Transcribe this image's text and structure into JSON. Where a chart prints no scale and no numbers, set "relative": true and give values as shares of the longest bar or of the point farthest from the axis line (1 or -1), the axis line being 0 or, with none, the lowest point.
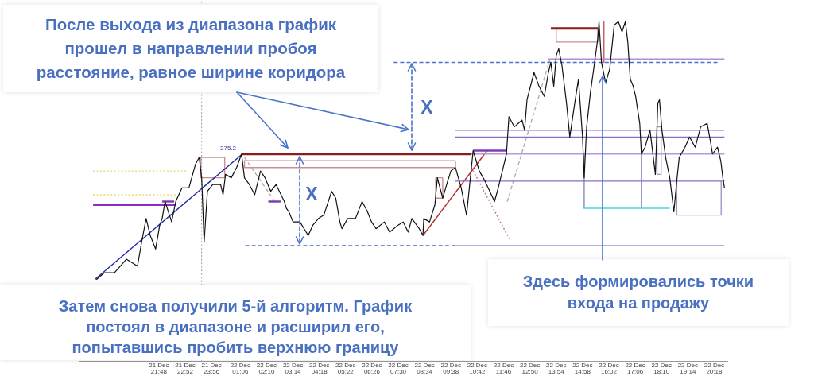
{
  "chart_data": {
    "type": "line",
    "relative": true,
    "annotations": [
      "После выхода из диапазона график\nпрошел в направлении пробоя\nрасстояние, равное ширине коридора",
      "X",
      "X",
      "275.2",
      "Затем снова получили 5-й алгоритм. График\nпостоял в диапазоне и расширил его,\nпопытавшись пробить верхнюю границу",
      "Здесь формировались точки\nвхода на продажу"
    ],
    "xlim": [
      "--12-21T18:35",
      "--12-22T20:50"
    ],
    "xticks": [
      {
        "value": "--12-21T21:48",
        "label": "21 Dec 21:48"
      },
      {
        "value": "--12-21T22:52",
        "label": "21 Dec 22:52"
      },
      {
        "value": "--12-21T23:56",
        "label": "21 Dec 23:56"
      },
      {
        "value": "--12-22T01:06",
        "label": "22 Dec 01:06"
      },
      {
        "value": "--12-22T02:10",
        "label": "22 Dec 02:10"
      },
      {
        "value": "--12-22T03:14",
        "label": "22 Dec 03:14"
      },
      {
        "value": "--12-22T04:18",
        "label": "22 Dec 04:18"
      },
      {
        "value": "--12-22T05:22",
        "label": "22 Dec 05:22"
      },
      {
        "value": "--12-22T06:26",
        "label": "22 Dec 06:26"
      },
      {
        "value": "--12-22T07:30",
        "label": "22 Dec 07:30"
      },
      {
        "value": "--12-22T08:34",
        "label": "22 Dec 08:34"
      },
      {
        "value": "--12-22T09:38",
        "label": "22 Dec 09:38"
      },
      {
        "value": "--12-22T10:42",
        "label": "22 Dec 10:42"
      },
      {
        "value": "--12-22T11:46",
        "label": "22 Dec 11:46"
      },
      {
        "value": "--12-22T12:50",
        "label": "22 Dec 12:50"
      },
      {
        "value": "--12-22T13:54",
        "label": "22 Dec 13:54"
      },
      {
        "value": "--12-22T14:58",
        "label": "22 Dec 14:58"
      },
      {
        "value": "--12-22T16:02",
        "label": "22 Dec 16:02"
      },
      {
        "value": "--12-22T17:06",
        "label": "22 Dec 17:06"
      },
      {
        "value": "--12-22T18:10",
        "label": "22 Dec 18:10"
      },
      {
        "value": "--12-22T19:14",
        "label": "22 Dec 19:14"
      },
      {
        "value": "--12-22T20:18",
        "label": "22 Dec 20:18"
      }
    ],
    "series": [
      {
        "color": "#111111",
        "x": [
          "--12-21T19:16",
          "--12-21T19:35",
          "--12-21T20:00",
          "--12-21T20:29",
          "--12-21T20:56",
          "--12-21T21:06",
          "--12-21T21:17",
          "--12-21T21:27",
          "--12-21T21:40",
          "--12-21T21:50",
          "--12-21T21:56",
          "--12-21T22:03",
          "--12-21T22:19",
          "--12-21T22:29",
          "--12-21T22:44",
          "--12-21T23:01",
          "--12-21T23:17",
          "--12-21T23:26",
          "--12-21T23:32",
          "--12-21T23:38",
          "--12-21T23:46",
          "--12-21T23:59",
          "--12-22T00:18",
          "--12-22T00:24",
          "--12-22T00:30",
          "--12-22T00:44",
          "--12-22T00:57",
          "--12-22T01:09",
          "--12-22T01:16",
          "--12-22T01:28",
          "--12-22T01:41",
          "--12-22T01:55",
          "--12-22T02:06",
          "--12-22T02:20",
          "--12-22T02:33",
          "--12-22T02:53",
          "--12-22T02:58",
          "--12-22T03:04",
          "--12-22T03:14",
          "--12-22T03:31",
          "--12-22T03:51",
          "--12-22T04:02",
          "--12-22T04:16",
          "--12-22T04:29",
          "--12-22T04:48",
          "--12-22T04:58",
          "--12-22T05:08",
          "--12-22T05:13",
          "--12-22T05:27",
          "--12-22T05:46",
          "--12-22T06:02",
          "--12-22T06:15",
          "--12-22T06:25",
          "--12-22T06:36",
          "--12-22T06:56",
          "--12-22T07:09",
          "--12-22T07:29",
          "--12-22T07:42",
          "--12-22T07:54",
          "--12-22T08:03",
          "--12-22T08:21",
          "--12-22T08:30",
          "--12-22T08:32",
          "--12-22T08:46",
          "--12-22T08:59",
          "--12-22T09:05",
          "--12-22T09:18",
          "--12-22T09:30",
          "--12-22T09:38",
          "--12-22T09:49",
          "--12-22T10:03",
          "--12-22T10:16",
          "--12-22T10:32",
          "--12-22T10:47",
          "--12-22T11:01",
          "--12-22T11:24",
          "--12-22T11:33",
          "--12-22T11:43",
          "--12-22T11:53",
          "--12-22T11:59",
          "--12-22T12:12",
          "--12-22T12:31",
          "--12-22T12:37",
          "--12-22T12:43",
          "--12-22T13:00",
          "--12-22T13:12",
          "--12-22T13:25",
          "--12-22T13:35",
          "--12-22T13:41",
          "--12-22T13:48",
          "--12-22T13:54",
          "--12-22T14:00",
          "--12-22T14:08",
          "--12-22T14:19",
          "--12-22T14:27",
          "--12-22T14:39",
          "--12-22T14:48",
          "--12-22T14:58",
          "--12-22T15:02",
          "--12-22T15:08",
          "--12-22T15:17",
          "--12-22T15:25",
          "--12-22T15:35",
          "--12-22T15:38",
          "--12-22T15:44",
          "--12-22T15:54",
          "--12-22T16:04",
          "--12-22T16:09",
          "--12-22T16:15",
          "--12-22T16:25",
          "--12-22T16:34",
          "--12-22T16:42",
          "--12-22T16:48",
          "--12-22T16:54",
          "--12-22T17:01",
          "--12-22T17:07",
          "--12-22T17:17",
          "--12-22T17:21",
          "--12-22T17:30",
          "--12-22T17:42",
          "--12-22T17:50",
          "--12-22T17:55",
          "--12-22T18:01",
          "--12-22T18:05",
          "--12-22T18:11",
          "--12-22T18:20",
          "--12-22T18:30",
          "--12-22T18:40",
          "--12-22T18:47",
          "--12-22T18:53",
          "--12-22T19:07",
          "--12-22T19:18",
          "--12-22T19:32",
          "--12-22T19:45",
          "--12-22T20:01",
          "--12-22T20:07",
          "--12-22T20:14",
          "--12-22T20:26",
          "--12-22T20:34",
          "--12-22T20:39",
          "--12-22T20:43"
        ],
        "values": [
          0.24,
          0.26,
          0.26,
          0.3,
          0.28,
          0.35,
          0.42,
          0.37,
          0.33,
          0.4,
          0.42,
          0.47,
          0.41,
          0.47,
          0.51,
          0.51,
          0.58,
          0.6,
          0.54,
          0.35,
          0.5,
          0.52,
          0.52,
          0.49,
          0.55,
          0.54,
          0.57,
          0.61,
          0.54,
          0.52,
          0.49,
          0.56,
          0.54,
          0.5,
          0.52,
          0.47,
          0.45,
          0.44,
          0.41,
          0.41,
          0.37,
          0.4,
          0.42,
          0.43,
          0.5,
          0.48,
          0.41,
          0.39,
          0.42,
          0.42,
          0.47,
          0.44,
          0.41,
          0.39,
          0.41,
          0.38,
          0.4,
          0.41,
          0.38,
          0.42,
          0.39,
          0.37,
          0.42,
          0.41,
          0.46,
          0.54,
          0.48,
          0.53,
          0.56,
          0.57,
          0.51,
          0.43,
          0.62,
          0.56,
          0.53,
          0.47,
          0.51,
          0.56,
          0.61,
          0.72,
          0.69,
          0.71,
          0.68,
          0.77,
          0.85,
          0.81,
          0.78,
          0.85,
          0.88,
          0.81,
          0.9,
          0.92,
          0.87,
          0.76,
          0.66,
          0.76,
          0.83,
          0.66,
          0.54,
          0.69,
          0.79,
          0.86,
          0.95,
          1.0,
          0.88,
          0.82,
          0.86,
          0.92,
          0.99,
          1.0,
          0.97,
          1.0,
          0.94,
          0.83,
          0.81,
          0.78,
          0.7,
          0.61,
          0.63,
          0.68,
          0.6,
          0.55,
          0.76,
          0.77,
          0.68,
          0.6,
          0.54,
          0.44,
          0.53,
          0.6,
          0.63,
          0.66,
          0.63,
          0.69,
          0.7,
          0.66,
          0.61,
          0.63,
          0.59,
          0.54,
          0.51
        ]
      },
      {
        "color": "#8b1c1c",
        "x": [
          "--12-22T01:09",
          "--12-22T10:28"
        ],
        "values": [
          0.61,
          0.61
        ]
      },
      {
        "color": "#8b1c1c",
        "x": [
          "--12-22T13:41",
          "--12-22T15:35"
        ],
        "values": [
          0.98,
          0.98
        ]
      },
      {
        "color": "#8f6cc4",
        "x": [
          "--12-22T09:49",
          "--12-22T20:43"
        ],
        "values": [
          0.68,
          0.68
        ]
      },
      {
        "color": "#8f6cc4",
        "x": [
          "--12-22T09:49",
          "--12-22T20:43"
        ],
        "values": [
          0.66,
          0.66
        ]
      },
      {
        "color": "#b89ad8",
        "x": [
          "--12-22T09:49",
          "--12-22T20:43"
        ],
        "values": [
          0.61,
          0.61
        ]
      },
      {
        "color": "#8f6cc4",
        "x": [
          "--12-22T09:49",
          "--12-22T20:43"
        ],
        "values": [
          0.53,
          0.53
        ]
      },
      {
        "color": "#b48fd8",
        "x": [
          "--12-22T09:49",
          "--12-22T20:43"
        ],
        "values": [
          0.34,
          0.34
        ]
      },
      {
        "color": "#b48fd8",
        "x": [
          "--12-22T13:35",
          "--12-22T20:43"
        ],
        "values": [
          0.89,
          0.89
        ]
      },
      {
        "color": "#8a2fbf",
        "x": [
          "--12-21T19:08",
          "--12-21T22:29"
        ],
        "values": [
          0.46,
          0.46
        ]
      },
      {
        "color": "#4a74c9",
        "x": [
          "--12-22T01:18",
          "--12-22T09:49"
        ],
        "values": [
          0.34,
          0.34
        ],
        "line_style": "dashed"
      },
      {
        "color": "#4a74c9",
        "x": [
          "--12-22T07:19",
          "--12-22T20:26"
        ],
        "values": [
          0.88,
          0.88
        ],
        "line_style": "dashed"
      },
      {
        "color": "#3fd8e6",
        "x": [
          "--12-22T15:02",
          "--12-22T18:30"
        ],
        "values": [
          0.45,
          0.45
        ]
      },
      {
        "color": "#7e3fb5",
        "x": [
          "--12-22T10:32",
          "--12-22T11:53"
        ],
        "values": [
          0.62,
          0.62
        ]
      },
      {
        "color": "#7e3fb5",
        "x": [
          "--12-22T02:14",
          "--12-22T02:45"
        ],
        "values": [
          0.47,
          0.47
        ]
      },
      {
        "color": "#7e3fb5",
        "x": [
          "--12-21T21:56",
          "--12-21T22:25"
        ],
        "values": [
          0.47,
          0.47
        ]
      },
      {
        "color": "#1c2aa6",
        "x": [
          "--12-21T19:12",
          "--12-22T01:11"
        ],
        "values": [
          0.24,
          0.61
        ]
      },
      {
        "color": "#b02a2a",
        "x": [
          "--12-22T08:30",
          "--12-22T11:06"
        ],
        "values": [
          0.37,
          0.62
        ]
      },
      {
        "color": "#c98f8f",
        "x": [
          "--12-21T23:30",
          "--12-21T23:30",
          "--12-22T00:28",
          "--12-22T00:28"
        ],
        "values": [
          0.6,
          0.54,
          0.54,
          0.6
        ]
      },
      {
        "color": "#c98f8f",
        "x": [
          "--12-21T23:30",
          "--12-22T00:28"
        ],
        "values": [
          0.6,
          0.6
        ]
      },
      {
        "color": "#c98f8f",
        "x": [
          "--12-22T01:16",
          "--12-22T01:16",
          "--12-22T09:49",
          "--12-22T09:49"
        ],
        "values": [
          0.59,
          0.57,
          0.57,
          0.59
        ]
      },
      {
        "color": "#c98f8f",
        "x": [
          "--12-22T01:16",
          "--12-22T09:49"
        ],
        "values": [
          0.59,
          0.59
        ]
      },
      {
        "color": "#8c88b8",
        "x": [
          "--12-22T15:02",
          "--12-22T15:02"
        ],
        "values": [
          0.61,
          0.45
        ]
      },
      {
        "color": "#8c88b8",
        "x": [
          "--12-22T17:21",
          "--12-22T17:21"
        ],
        "values": [
          0.61,
          0.45
        ]
      },
      {
        "color": "#9c98c4",
        "x": [
          "--12-22T18:47",
          "--12-22T18:47",
          "--12-22T20:35",
          "--12-22T20:35"
        ],
        "values": [
          0.53,
          0.43,
          0.43,
          0.53
        ]
      },
      {
        "color": "#c98f8f",
        "x": [
          "--12-22T13:54",
          "--12-22T13:54",
          "--12-22T15:35",
          "--12-22T15:35"
        ],
        "values": [
          0.98,
          0.94,
          0.94,
          0.98
        ]
      },
      {
        "color": "#c98f8f",
        "x": [
          "--12-22T09:01",
          "--12-22T09:01",
          "--12-22T09:18",
          "--12-22T09:18"
        ],
        "values": [
          0.54,
          0.48,
          0.48,
          0.54
        ]
      },
      {
        "color": "#c98f8f",
        "x": [
          "--12-22T09:01",
          "--12-22T09:18"
        ],
        "values": [
          0.54,
          0.54
        ]
      },
      {
        "color": "#9c98c4",
        "x": [
          "--12-22T17:59",
          "--12-22T17:59",
          "--12-22T18:09",
          "--12-22T18:09"
        ],
        "values": [
          0.69,
          0.55,
          0.55,
          0.69
        ]
      },
      {
        "color": "#9c98c4",
        "x": [
          "--12-22T17:59",
          "--12-22T18:09"
        ],
        "values": [
          0.69,
          0.69
        ]
      },
      {
        "color": "#c45a5a",
        "x": [
          "--12-22T15:50",
          "--12-22T15:50"
        ],
        "values": [
          1.0,
          0.88
        ]
      },
      {
        "color": "#b0b0b0",
        "x": [
          "--12-22T01:16",
          "--12-22T02:30"
        ],
        "values": [
          0.6,
          0.47
        ],
        "line_style": "dashed"
      },
      {
        "color": "#b0b0b0",
        "x": [
          "--12-22T11:55",
          "--12-22T13:39"
        ],
        "values": [
          0.47,
          0.89
        ],
        "line_style": "dashed"
      },
      {
        "color": "#c47a7a",
        "x": [
          "--12-22T10:28",
          "--12-22T12:00"
        ],
        "values": [
          0.57,
          0.36
        ],
        "line_style": "dotted"
      },
      {
        "color": "#e6dc6a",
        "x": [
          "--12-21T19:08",
          "--12-21T22:54"
        ],
        "values": [
          0.56,
          0.56
        ],
        "line_style": "dotted"
      },
      {
        "color": "#e6dc6a",
        "x": [
          "--12-21T19:08",
          "--12-21T22:29"
        ],
        "values": [
          0.49,
          0.49
        ],
        "line_style": "dotted"
      }
    ],
    "ref_lines": [
      {
        "axis": "x",
        "value": "--12-21T23:32",
        "color": "#9a9a9a",
        "line_style": "dotted"
      }
    ]
  }
}
